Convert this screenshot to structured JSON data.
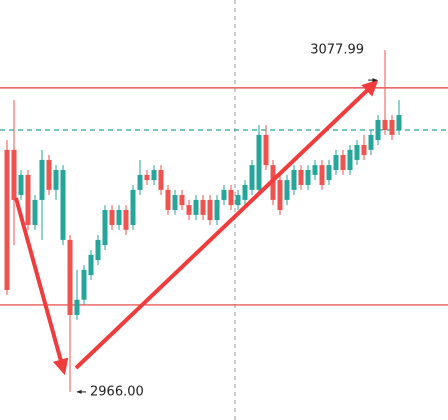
{
  "chart_data": {
    "type": "candlestick",
    "open": [
      3045.3,
      3045.3,
      3030.5,
      3037.1,
      3020.7,
      3028.9,
      3042.0,
      3032.2,
      3015.8,
      3015.8,
      2991.2,
      2996.2,
      3004.3,
      3009.2,
      3014.1,
      3025.6,
      3020.7,
      3025.6,
      3020.7,
      3032.2,
      3037.1,
      3035.4,
      3038.7,
      3032.2,
      3025.6,
      3030.5,
      3027.2,
      3024.0,
      3028.9,
      3028.9,
      3022.3,
      3028.9,
      3032.2,
      3027.2,
      3028.9,
      3032.2,
      3032.2,
      3050.2,
      3040.3,
      3035.4,
      3028.9,
      3032.2,
      3038.7,
      3033.8,
      3037.1,
      3040.3,
      3035.4,
      3038.7,
      3043.6,
      3038.7,
      3042.0,
      3046.9,
      3045.3,
      3048.5,
      3055.1,
      3055.1,
      3051.8
    ],
    "high": [
      3048.5,
      3061.6,
      3038.7,
      3038.7,
      3030.5,
      3045.3,
      3043.6,
      3040.3,
      3040.3,
      3017.4,
      3006.0,
      3007.6,
      3012.5,
      3017.4,
      3027.2,
      3027.2,
      3027.2,
      3027.2,
      3033.8,
      3042.0,
      3038.7,
      3040.3,
      3040.3,
      3033.8,
      3032.2,
      3032.2,
      3028.9,
      3030.5,
      3030.5,
      3030.5,
      3030.5,
      3033.8,
      3033.8,
      3032.2,
      3035.4,
      3042.0,
      3053.4,
      3053.4,
      3042.0,
      3037.1,
      3037.1,
      3040.3,
      3040.3,
      3040.3,
      3042.0,
      3042.0,
      3042.0,
      3045.3,
      3045.3,
      3046.9,
      3048.5,
      3050.2,
      3051.8,
      3056.7,
      3077.99,
      3056.7,
      3061.6
    ],
    "low": [
      2997.8,
      3014.1,
      3028.9,
      3019.1,
      3019.1,
      3015.8,
      3030.5,
      3028.9,
      3014.1,
      2966.0,
      2989.6,
      2994.5,
      3002.7,
      3007.6,
      3012.5,
      3019.1,
      3019.1,
      3017.4,
      3019.1,
      3030.5,
      3033.8,
      3033.8,
      3030.5,
      3024.0,
      3024.0,
      3025.6,
      3022.3,
      3022.3,
      3022.3,
      3020.7,
      3020.7,
      3027.2,
      3025.6,
      3025.6,
      3027.2,
      3030.5,
      3030.5,
      3038.7,
      3027.2,
      3024.0,
      3027.2,
      3030.5,
      3032.2,
      3032.2,
      3035.4,
      3032.2,
      3033.8,
      3037.1,
      3037.1,
      3037.1,
      3040.3,
      3042.0,
      3043.6,
      3046.9,
      3050.2,
      3048.5,
      3050.2
    ],
    "close": [
      2999.4,
      3028.9,
      3037.1,
      3020.7,
      3028.9,
      3042.0,
      3032.2,
      3038.7,
      3038.7,
      2991.2,
      2996.2,
      3006.0,
      3010.9,
      3015.8,
      3025.6,
      3020.7,
      3025.6,
      3019.1,
      3032.2,
      3037.1,
      3035.4,
      3038.7,
      3032.2,
      3025.6,
      3030.5,
      3027.2,
      3024.0,
      3028.9,
      3024.0,
      3022.3,
      3028.9,
      3032.2,
      3027.2,
      3030.5,
      3033.8,
      3040.3,
      3050.2,
      3040.3,
      3028.9,
      3025.6,
      3035.4,
      3038.7,
      3033.8,
      3038.7,
      3040.3,
      3033.8,
      3040.3,
      3043.6,
      3038.7,
      3045.3,
      3046.9,
      3043.6,
      3050.2,
      3055.1,
      3051.8,
      3050.2,
      3056.7
    ],
    "up_color": "#26a69a",
    "down_color": "#ef5350",
    "ylim": [
      2956.8,
      3094.4
    ],
    "hlines": [
      {
        "value": 3065.6,
        "color": "#e53935",
        "dashed": false
      },
      {
        "value": 2994.5,
        "color": "#e53935",
        "dashed": false
      },
      {
        "value": 3051.8,
        "color": "#26a69a",
        "dashed": true
      }
    ],
    "annotations": [
      {
        "text": "3077.99",
        "value": 3077.99,
        "side": "left"
      },
      {
        "text": "2966.00",
        "value": 2966.0,
        "side": "right"
      }
    ]
  }
}
